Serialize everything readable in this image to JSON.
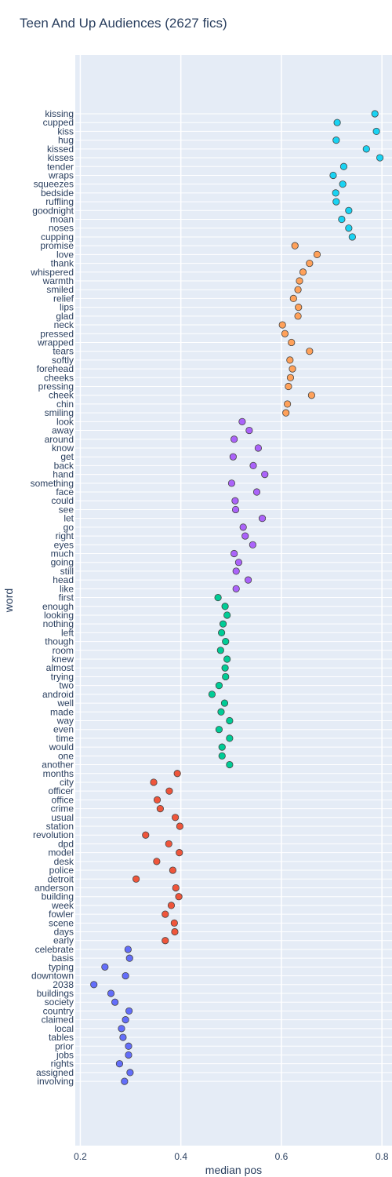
{
  "chart_data": {
    "type": "scatter",
    "title": "Teen And Up Audiences (2627 fics)",
    "xlabel": "median pos",
    "ylabel": "word",
    "xlim": [
      0.19,
      0.82
    ],
    "xticks": [
      0.2,
      0.4,
      0.6,
      0.8
    ],
    "xtick_labels": [
      "0.2",
      "0.4",
      "0.6",
      "0.8"
    ],
    "grid": true,
    "legend": "none",
    "colors": {
      "plot_bg": "#e5ecf6",
      "grid": "#ffffff",
      "text": "#2a3f5f",
      "marker_edge": "#444444"
    },
    "series": [
      {
        "color": "#19d3f3",
        "points": [
          {
            "word": "kissing",
            "x": 0.786
          },
          {
            "word": "cupped",
            "x": 0.711
          },
          {
            "word": "kiss",
            "x": 0.789
          },
          {
            "word": "hug",
            "x": 0.709
          },
          {
            "word": "kissed",
            "x": 0.769
          },
          {
            "word": "kisses",
            "x": 0.796
          },
          {
            "word": "tender",
            "x": 0.724
          },
          {
            "word": "wraps",
            "x": 0.703
          },
          {
            "word": "squeezes",
            "x": 0.722
          },
          {
            "word": "bedside",
            "x": 0.708
          },
          {
            "word": "ruffling",
            "x": 0.709
          },
          {
            "word": "goodnight",
            "x": 0.734
          },
          {
            "word": "moan",
            "x": 0.72
          },
          {
            "word": "noses",
            "x": 0.734
          },
          {
            "word": "cupping",
            "x": 0.741
          }
        ]
      },
      {
        "color": "#ffa15a",
        "points": [
          {
            "word": "promise",
            "x": 0.627
          },
          {
            "word": "love",
            "x": 0.671
          },
          {
            "word": "thank",
            "x": 0.656
          },
          {
            "word": "whispered",
            "x": 0.643
          },
          {
            "word": "warmth",
            "x": 0.636
          },
          {
            "word": "smiled",
            "x": 0.633
          },
          {
            "word": "relief",
            "x": 0.624
          },
          {
            "word": "lips",
            "x": 0.634
          },
          {
            "word": "glad",
            "x": 0.633
          },
          {
            "word": "neck",
            "x": 0.602
          },
          {
            "word": "pressed",
            "x": 0.607
          },
          {
            "word": "wrapped",
            "x": 0.62
          },
          {
            "word": "tears",
            "x": 0.656
          },
          {
            "word": "softly",
            "x": 0.617
          },
          {
            "word": "forehead",
            "x": 0.622
          },
          {
            "word": "cheeks",
            "x": 0.618
          },
          {
            "word": "pressing",
            "x": 0.614
          },
          {
            "word": "cheek",
            "x": 0.66
          },
          {
            "word": "chin",
            "x": 0.612
          },
          {
            "word": "smiling",
            "x": 0.609
          }
        ]
      },
      {
        "color": "#ab63fa",
        "points": [
          {
            "word": "look",
            "x": 0.522
          },
          {
            "word": "away",
            "x": 0.536
          },
          {
            "word": "around",
            "x": 0.506
          },
          {
            "word": "know",
            "x": 0.554
          },
          {
            "word": "get",
            "x": 0.504
          },
          {
            "word": "back",
            "x": 0.544
          },
          {
            "word": "hand",
            "x": 0.567
          },
          {
            "word": "something",
            "x": 0.501
          },
          {
            "word": "face",
            "x": 0.551
          },
          {
            "word": "could",
            "x": 0.508
          },
          {
            "word": "see",
            "x": 0.509
          },
          {
            "word": "let",
            "x": 0.562
          },
          {
            "word": "go",
            "x": 0.524
          },
          {
            "word": "right",
            "x": 0.528
          },
          {
            "word": "eyes",
            "x": 0.543
          },
          {
            "word": "much",
            "x": 0.506
          },
          {
            "word": "going",
            "x": 0.515
          },
          {
            "word": "still",
            "x": 0.51
          },
          {
            "word": "head",
            "x": 0.534
          },
          {
            "word": "like",
            "x": 0.51
          }
        ]
      },
      {
        "color": "#00cc96",
        "points": [
          {
            "word": "first",
            "x": 0.474
          },
          {
            "word": "enough",
            "x": 0.488
          },
          {
            "word": "looking",
            "x": 0.492
          },
          {
            "word": "nothing",
            "x": 0.484
          },
          {
            "word": "left",
            "x": 0.481
          },
          {
            "word": "though",
            "x": 0.489
          },
          {
            "word": "room",
            "x": 0.479
          },
          {
            "word": "knew",
            "x": 0.492
          },
          {
            "word": "almost",
            "x": 0.488
          },
          {
            "word": "trying",
            "x": 0.489
          },
          {
            "word": "two",
            "x": 0.476
          },
          {
            "word": "android",
            "x": 0.462
          },
          {
            "word": "well",
            "x": 0.487
          },
          {
            "word": "made",
            "x": 0.48
          },
          {
            "word": "way",
            "x": 0.497
          },
          {
            "word": "even",
            "x": 0.476
          },
          {
            "word": "time",
            "x": 0.497
          },
          {
            "word": "would",
            "x": 0.482
          },
          {
            "word": "one",
            "x": 0.482
          },
          {
            "word": "another",
            "x": 0.497
          }
        ]
      },
      {
        "color": "#ef553b",
        "points": [
          {
            "word": "months",
            "x": 0.393
          },
          {
            "word": "city",
            "x": 0.346
          },
          {
            "word": "officer",
            "x": 0.377
          },
          {
            "word": "office",
            "x": 0.353
          },
          {
            "word": "crime",
            "x": 0.359
          },
          {
            "word": "usual",
            "x": 0.389
          },
          {
            "word": "station",
            "x": 0.398
          },
          {
            "word": "revolution",
            "x": 0.33
          },
          {
            "word": "dpd",
            "x": 0.376
          },
          {
            "word": "model",
            "x": 0.397
          },
          {
            "word": "desk",
            "x": 0.352
          },
          {
            "word": "police",
            "x": 0.384
          },
          {
            "word": "detroit",
            "x": 0.311
          },
          {
            "word": "anderson",
            "x": 0.39
          },
          {
            "word": "building",
            "x": 0.396
          },
          {
            "word": "week",
            "x": 0.381
          },
          {
            "word": "fowler",
            "x": 0.369
          },
          {
            "word": "scene",
            "x": 0.387
          },
          {
            "word": "days",
            "x": 0.388
          },
          {
            "word": "early",
            "x": 0.369
          }
        ]
      },
      {
        "color": "#636efa",
        "points": [
          {
            "word": "celebrate",
            "x": 0.295
          },
          {
            "word": "basis",
            "x": 0.298
          },
          {
            "word": "typing",
            "x": 0.249
          },
          {
            "word": "downtown",
            "x": 0.29
          },
          {
            "word": "2038",
            "x": 0.227
          },
          {
            "word": "buildings",
            "x": 0.261
          },
          {
            "word": "society",
            "x": 0.269
          },
          {
            "word": "country",
            "x": 0.297
          },
          {
            "word": "claimed",
            "x": 0.29
          },
          {
            "word": "local",
            "x": 0.282
          },
          {
            "word": "tables",
            "x": 0.285
          },
          {
            "word": "prior",
            "x": 0.296
          },
          {
            "word": "jobs",
            "x": 0.296
          },
          {
            "word": "rights",
            "x": 0.278
          },
          {
            "word": "assigned",
            "x": 0.299
          },
          {
            "word": "involving",
            "x": 0.288
          }
        ]
      }
    ]
  }
}
